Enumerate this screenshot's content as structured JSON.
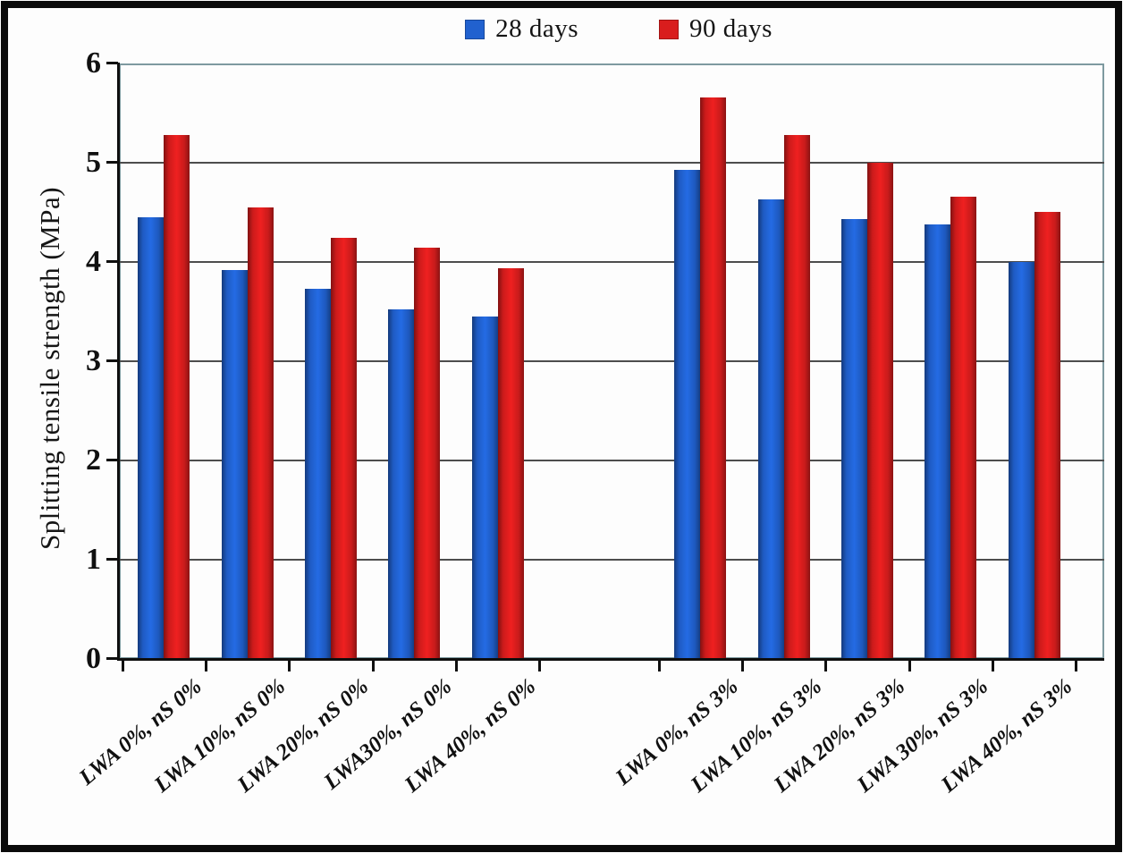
{
  "chart_data": {
    "type": "bar",
    "title": "",
    "ylabel": "Splitting tensile strength (MPa)",
    "xlabel": "",
    "ylim": [
      0,
      6
    ],
    "yticks": [
      "0",
      "1",
      "2",
      "3",
      "4",
      "5",
      "6"
    ],
    "grid": "horizontal",
    "legend_position": "top-center",
    "group_split_after": 5,
    "categories": [
      "LWA 0%, nS 0%",
      "LWA 10%, nS 0%",
      "LWA 20%, nS 0%",
      "LWA30%, nS 0%",
      "LWA 40%, nS 0%",
      "LWA 0%, nS 3%",
      "LWA 10%, nS 3%",
      "LWA 20%, nS 3%",
      "LWA 30%, nS 3%",
      "LWA 40%, nS 3%"
    ],
    "series": [
      {
        "name": "28 days",
        "color": "#2161cf",
        "values": [
          4.45,
          3.92,
          3.73,
          3.52,
          3.45,
          4.93,
          4.63,
          4.43,
          4.38,
          4.0
        ]
      },
      {
        "name": "90 days",
        "color": "#d91d1d",
        "values": [
          5.28,
          4.55,
          4.24,
          4.14,
          3.94,
          5.66,
          5.28,
          5.0,
          4.66,
          4.5
        ]
      }
    ]
  },
  "colors": {
    "bar_blue": "#2161cf",
    "bar_red": "#d91d1d",
    "plot_border": "#7e9aa0",
    "gridline": "#4d4d4d",
    "axis": "#0f0f0f",
    "outer_frame": "#0b0b0b",
    "background": "#fdfdfd"
  }
}
